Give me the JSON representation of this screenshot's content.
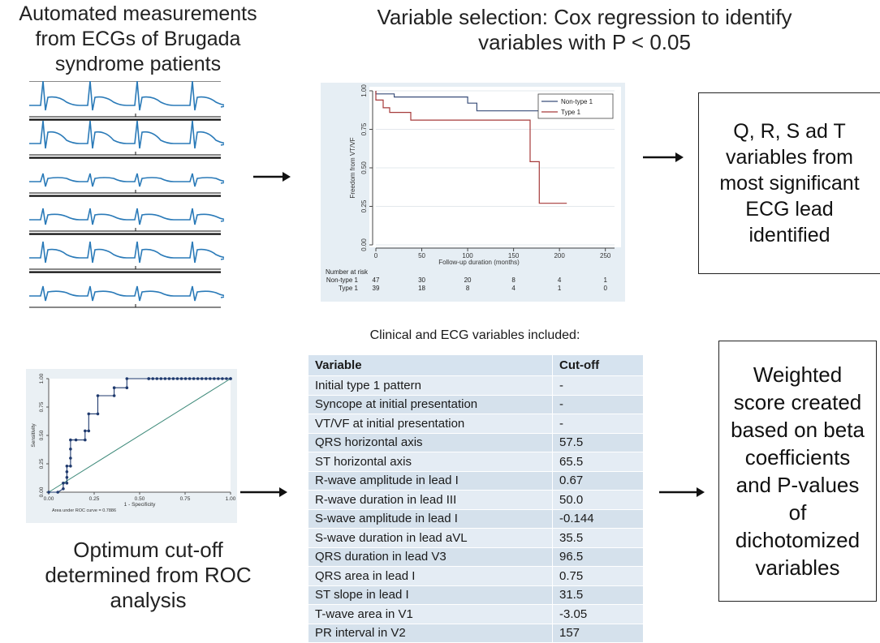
{
  "top_left": {
    "title": "Automated measurements from ECGs of Brugada syndrome patients"
  },
  "top_middle": {
    "title": "Variable selection: Cox regression to identify variables with P < 0.05"
  },
  "top_right_box": {
    "text": "Q, R, S ad T variables from most significant ECG lead identified"
  },
  "km_plot": {
    "ylabel": "Freedom from VT/VF",
    "xlabel": "Follow-up duration (months)",
    "legend": [
      "Non-type 1",
      "Type 1"
    ],
    "yticks": [
      "0.00",
      "0.25",
      "0.50",
      "0.75",
      "1.00"
    ],
    "xticks": [
      "0",
      "50",
      "100",
      "150",
      "200",
      "250"
    ],
    "risk_header": "Number at risk",
    "risk_rows": [
      {
        "label": "Non-type 1",
        "values": [
          "47",
          "30",
          "20",
          "8",
          "4",
          "1"
        ]
      },
      {
        "label": "Type 1",
        "values": [
          "39",
          "18",
          "8",
          "4",
          "1",
          "0"
        ]
      }
    ],
    "colors": {
      "non_type1": "#3a4f7a",
      "type1": "#a63a3a"
    }
  },
  "bottom_left": {
    "caption": "Optimum cut-off determined from ROC analysis"
  },
  "roc_plot": {
    "ylabel": "Sensitivity",
    "xlabel": "1 - Specificity",
    "auc_text": "Area under ROC curve = 0.7886",
    "ticks": [
      "0.00",
      "0.25",
      "0.50",
      "0.75",
      "1.00"
    ]
  },
  "table": {
    "caption": "Clinical and ECG variables included:",
    "headers": [
      "Variable",
      "Cut-off"
    ],
    "rows": [
      [
        "Initial type 1 pattern",
        "-"
      ],
      [
        "Syncope at initial presentation",
        "-"
      ],
      [
        "VT/VF at initial presentation",
        "-"
      ],
      [
        "QRS horizontal axis",
        "57.5"
      ],
      [
        "ST horizontal axis",
        "65.5"
      ],
      [
        "R-wave amplitude in lead I",
        "0.67"
      ],
      [
        "R-wave duration in lead III",
        "50.0"
      ],
      [
        "S-wave amplitude in lead I",
        "-0.144"
      ],
      [
        "S-wave duration in lead aVL",
        "35.5"
      ],
      [
        "QRS duration in lead V3",
        "96.5"
      ],
      [
        "QRS area in lead I",
        "0.75"
      ],
      [
        "ST slope in lead I",
        "31.5"
      ],
      [
        "T-wave area in V1",
        "-3.05"
      ],
      [
        "PR interval in V2",
        "157"
      ]
    ]
  },
  "bottom_right_box": {
    "text": "Weighted score created based on beta coefficients and P-values of dichotomized variables"
  },
  "colors": {
    "ecg_trace": "#2a7ab8",
    "table_header": "#d6e3ef",
    "table_row": "#e4ecf4",
    "roc_curve": "#1f3a6e",
    "roc_diagonal": "#3e8a7a"
  }
}
